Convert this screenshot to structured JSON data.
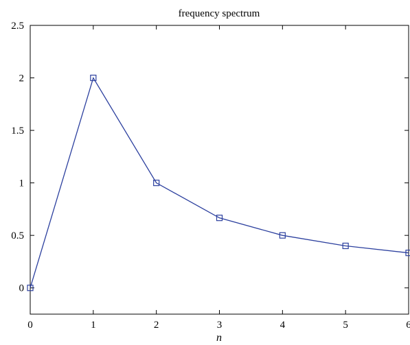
{
  "chart_data": {
    "type": "line",
    "title": "frequency spectrum",
    "xlabel": "n",
    "ylabel": "",
    "xlim": [
      0,
      6
    ],
    "ylim": [
      -0.25,
      2.5
    ],
    "xticks": [
      0,
      1,
      2,
      3,
      4,
      5,
      6
    ],
    "yticks": [
      0,
      0.5,
      1,
      1.5,
      2,
      2.5
    ],
    "xtick_labels": [
      "0",
      "1",
      "2",
      "3",
      "4",
      "5",
      "6"
    ],
    "ytick_labels": [
      "0",
      "0.5",
      "1",
      "1.5",
      "2",
      "2.5"
    ],
    "grid": false,
    "series": [
      {
        "x": [
          0,
          1,
          2,
          3,
          4,
          5,
          6
        ],
        "y": [
          0,
          2,
          1,
          0.6667,
          0.5,
          0.4,
          0.3333
        ],
        "marker": "square",
        "color": "#2b3f9e"
      }
    ]
  }
}
